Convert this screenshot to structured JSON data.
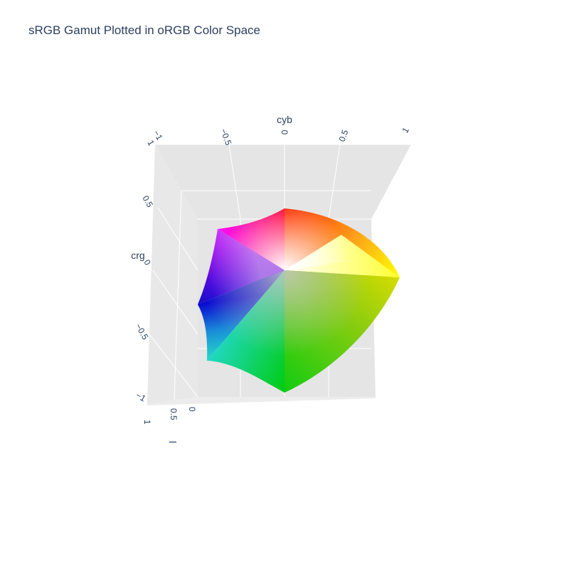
{
  "chart_data": {
    "type": "surface3d",
    "title": "sRGB Gamut Plotted in oRGB Color Space",
    "axes": {
      "x": {
        "label": "cyb",
        "ticks": [
          "−1",
          "−0.5",
          "0",
          "0.5",
          "1"
        ],
        "range": [
          -1,
          1
        ]
      },
      "y": {
        "label": "crg",
        "ticks": [
          "1",
          "0.5",
          "0",
          "−0.5",
          "−1"
        ],
        "range": [
          -1,
          1
        ]
      },
      "z": {
        "label": "l",
        "ticks": [
          "1",
          "0.5",
          "0"
        ],
        "range": [
          0,
          1
        ]
      }
    },
    "grid": true,
    "vertices": [
      {
        "name": "white",
        "cyb": 0,
        "crg": 0,
        "color": "#ffffff"
      },
      {
        "name": "red",
        "cyb": 0,
        "crg": 0.72,
        "color": "#ff0000"
      },
      {
        "name": "yellow",
        "cyb": 1.0,
        "crg": 0,
        "color": "#ffff00"
      },
      {
        "name": "green",
        "cyb": 0,
        "crg": -1.0,
        "color": "#00cc00"
      },
      {
        "name": "cyan",
        "cyb": -0.72,
        "crg": -0.62,
        "color": "#00e0e0"
      },
      {
        "name": "blue",
        "cyb": -0.8,
        "crg": -0.25,
        "color": "#0000cc"
      },
      {
        "name": "magenta",
        "cyb": -0.6,
        "crg": 0.5,
        "color": "#ff00ff"
      }
    ]
  }
}
